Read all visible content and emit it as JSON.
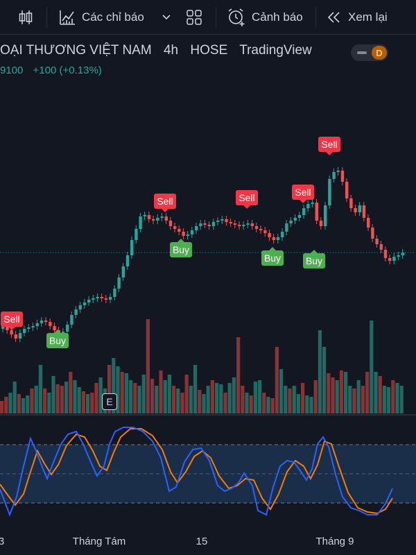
{
  "toolbar": {
    "indicators_label": "Các chỉ báo",
    "alert_label": "Cảnh báo",
    "replay_label": "Xem lại"
  },
  "legend": {
    "symbol_name": "OẠI THƯƠNG VIỆT NAM",
    "interval": "4h",
    "exchange": "HOSE",
    "source": "TradingView",
    "price_fragment": "9100",
    "change_text": "+100 (+0.13%)",
    "mode_chip": "D"
  },
  "earnings_badge": "E",
  "x_axis": {
    "labels": [
      "3",
      "Tháng Tám",
      "15",
      "Tháng 9"
    ]
  },
  "colors": {
    "up": "#26a69a",
    "down": "#ef5350",
    "volume_up": "#1f6b63",
    "volume_down": "#8d3234",
    "stoch_k": "#2962ff",
    "stoch_d": "#f57c00",
    "buy_label": "#4caf50",
    "sell_label": "#f23645"
  },
  "icons": {
    "bar_style": "candlestick-icon",
    "indicators": "indicators-chart-icon",
    "dropdown": "chevron-down-icon",
    "templates": "grid-four-icon",
    "alert": "alarm-clock-plus-icon",
    "replay": "rewind-icon"
  },
  "signals": {
    "buy_text": "Buy",
    "sell_text": "Sell"
  }
}
